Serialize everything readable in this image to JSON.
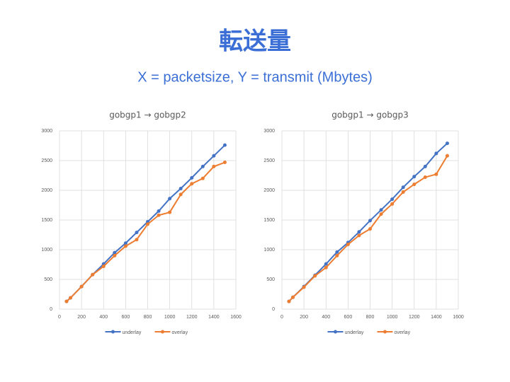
{
  "title": "転送量",
  "subtitle": "X = packetsize, Y = transmit (Mbytes)",
  "chart_data": [
    {
      "type": "line",
      "title": "gobgp1 → gobgp2",
      "x": [
        64,
        100,
        200,
        300,
        400,
        500,
        600,
        700,
        800,
        900,
        1000,
        1100,
        1200,
        1300,
        1400,
        1500
      ],
      "series": [
        {
          "name": "underlay",
          "color": "#4472c4",
          "values": [
            130,
            190,
            380,
            580,
            760,
            950,
            1110,
            1290,
            1470,
            1650,
            1860,
            2030,
            2210,
            2400,
            2580,
            2760
          ]
        },
        {
          "name": "overlay",
          "color": "#ed7d31",
          "values": [
            130,
            190,
            380,
            580,
            720,
            900,
            1060,
            1170,
            1430,
            1580,
            1630,
            1930,
            2110,
            2200,
            2400,
            2470
          ]
        }
      ],
      "xlim": [
        0,
        1600
      ],
      "xticks": [
        0,
        200,
        400,
        600,
        800,
        1000,
        1200,
        1400,
        1600
      ],
      "ylim": [
        0,
        3000
      ],
      "yticks": [
        0,
        500,
        1000,
        1500,
        2000,
        2500,
        3000
      ],
      "grid": true,
      "legend": "bottom"
    },
    {
      "type": "line",
      "title": "gobgp1 → gobgp3",
      "x": [
        64,
        100,
        200,
        300,
        400,
        500,
        600,
        700,
        800,
        900,
        1000,
        1100,
        1200,
        1300,
        1400,
        1500
      ],
      "series": [
        {
          "name": "underlay",
          "color": "#4472c4",
          "values": [
            130,
            200,
            380,
            570,
            760,
            960,
            1120,
            1300,
            1490,
            1670,
            1850,
            2050,
            2230,
            2400,
            2620,
            2790
          ]
        },
        {
          "name": "overlay",
          "color": "#ed7d31",
          "values": [
            130,
            200,
            370,
            560,
            700,
            900,
            1090,
            1240,
            1350,
            1600,
            1770,
            1970,
            2100,
            2220,
            2270,
            2580
          ]
        }
      ],
      "xlim": [
        0,
        1600
      ],
      "xticks": [
        0,
        200,
        400,
        600,
        800,
        1000,
        1200,
        1400,
        1600
      ],
      "ylim": [
        0,
        3000
      ],
      "yticks": [
        0,
        500,
        1000,
        1500,
        2000,
        2500,
        3000
      ],
      "grid": true,
      "legend": "bottom"
    }
  ]
}
